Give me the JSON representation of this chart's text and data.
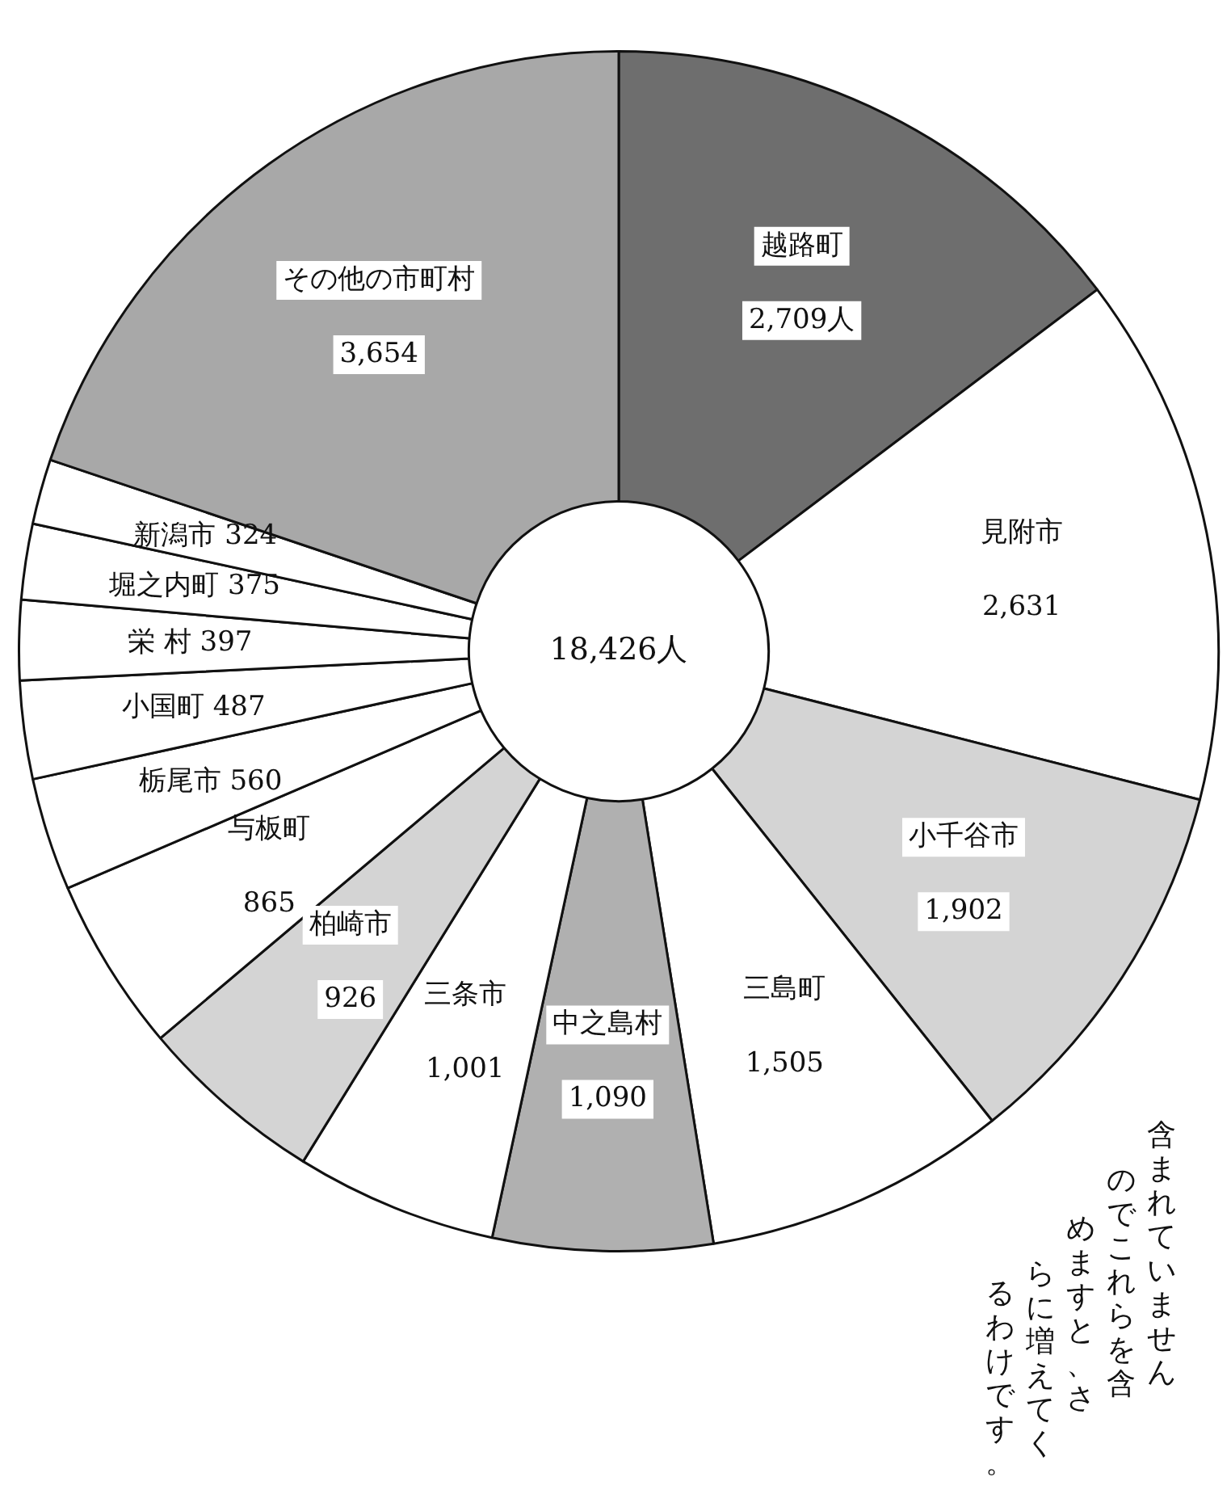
{
  "chart_data": {
    "type": "donut",
    "categories": [
      "越路町",
      "見附市",
      "小千谷市",
      "三島町",
      "中之島村",
      "三条市",
      "柏崎市",
      "与板町",
      "栃尾市",
      "小国町",
      "栄 村",
      "堀之内町",
      "新潟市",
      "その他の市町村"
    ],
    "values": [
      2709,
      2631,
      1902,
      1505,
      1090,
      1001,
      926,
      865,
      560,
      487,
      397,
      375,
      324,
      3654
    ],
    "value_labels": [
      "2,709人",
      "2,631",
      "1,902",
      "1,505",
      "1,090",
      "1,001",
      "926",
      "865",
      "560",
      "487",
      "397",
      "375",
      "324",
      "3,654"
    ],
    "colors": [
      "#6e6e6e",
      "#ffffff",
      "#d4d4d4",
      "#ffffff",
      "#b0b0b0",
      "#ffffff",
      "#d4d4d4",
      "#ffffff",
      "#ffffff",
      "#ffffff",
      "#ffffff",
      "#ffffff",
      "#ffffff",
      "#a8a8a8"
    ],
    "annotations": [
      "18,426人",
      "含まれていません",
      "のでこれらを含",
      "めますと、さ",
      "らに増えてく",
      "るわけです。"
    ],
    "legend": false
  }
}
